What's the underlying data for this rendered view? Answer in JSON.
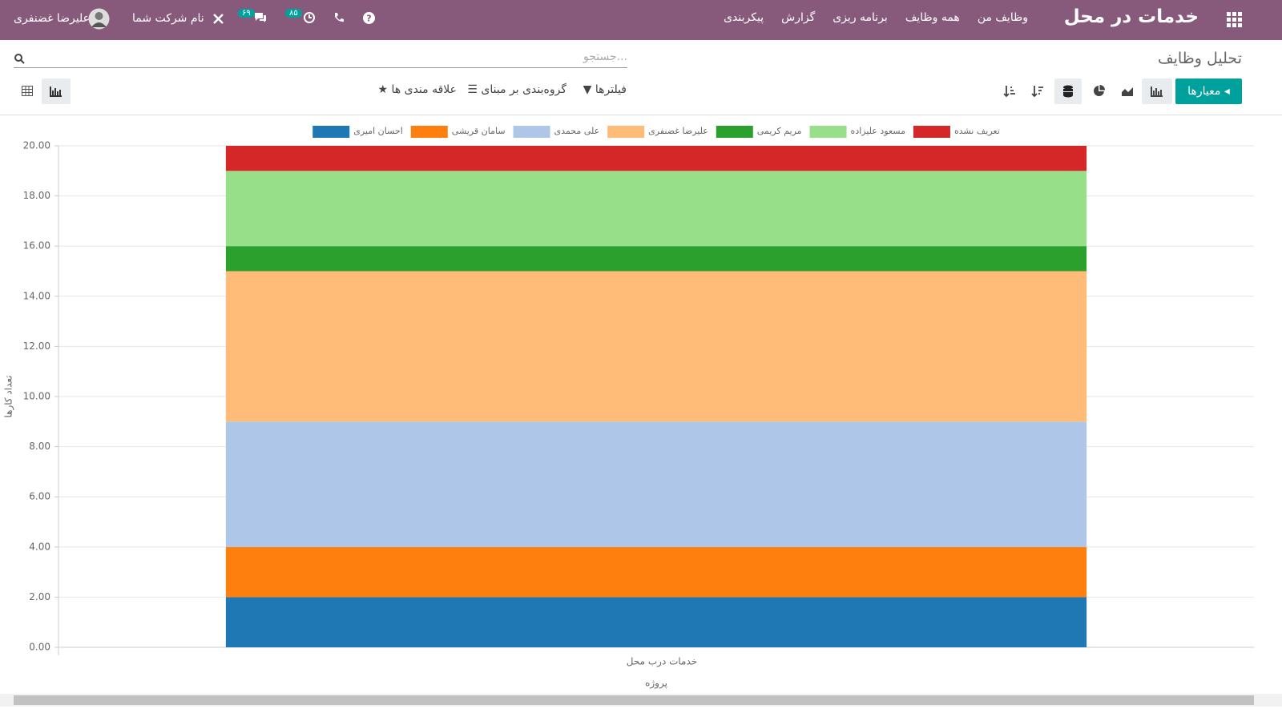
{
  "navbar": {
    "app_title": "خدمات در محل",
    "menu": [
      "وظایف من",
      "همه وظایف",
      "برنامه ریزی",
      "گزارش",
      "پیکربندی"
    ],
    "badges": [
      "۸۵",
      "۶۹"
    ],
    "company": "نام شرکت شما",
    "user": "علیرضا غضنفری"
  },
  "control_panel": {
    "breadcrumb": "تحلیل وظایف",
    "search_placeholder": "جستجو...",
    "measures": "معیارها",
    "filters": "فیلترها",
    "group_by": "گروه‌بندی بر مبنای",
    "favorites": "علاقه مندی ها"
  },
  "chart_data": {
    "type": "bar",
    "stacked": true,
    "x_label": "پروژه",
    "y_label": "تعداد کارها",
    "categories": [
      "خدمات درب محل"
    ],
    "series": [
      {
        "name": "احسان امیری",
        "color": "#1f77b4",
        "values": [
          2
        ]
      },
      {
        "name": "سامان قریشی",
        "color": "#ff7f0e",
        "values": [
          2
        ]
      },
      {
        "name": "علی محمدی",
        "color": "#aec7e8",
        "values": [
          5
        ]
      },
      {
        "name": "علیرضا غضنفری",
        "color": "#ffbb78",
        "values": [
          6
        ]
      },
      {
        "name": "مریم کریمی",
        "color": "#2ca02c",
        "values": [
          1
        ]
      },
      {
        "name": "مسعود علیزاده",
        "color": "#98df8a",
        "values": [
          3
        ]
      },
      {
        "name": "تعریف نشده",
        "color": "#d62728",
        "values": [
          1
        ]
      }
    ],
    "ylim": [
      0,
      20
    ],
    "yticks": [
      {
        "value": 0,
        "label": "0.00"
      },
      {
        "value": 2,
        "label": "2.00"
      },
      {
        "value": 4,
        "label": "4.00"
      },
      {
        "value": 6,
        "label": "6.00"
      },
      {
        "value": 8,
        "label": "8.00"
      },
      {
        "value": 10,
        "label": "10.00"
      },
      {
        "value": 12,
        "label": "12.00"
      },
      {
        "value": 14,
        "label": "14.00"
      },
      {
        "value": 16,
        "label": "16.00"
      },
      {
        "value": 18,
        "label": "18.00"
      },
      {
        "value": 20,
        "label": "20.00"
      }
    ],
    "grid": true
  }
}
